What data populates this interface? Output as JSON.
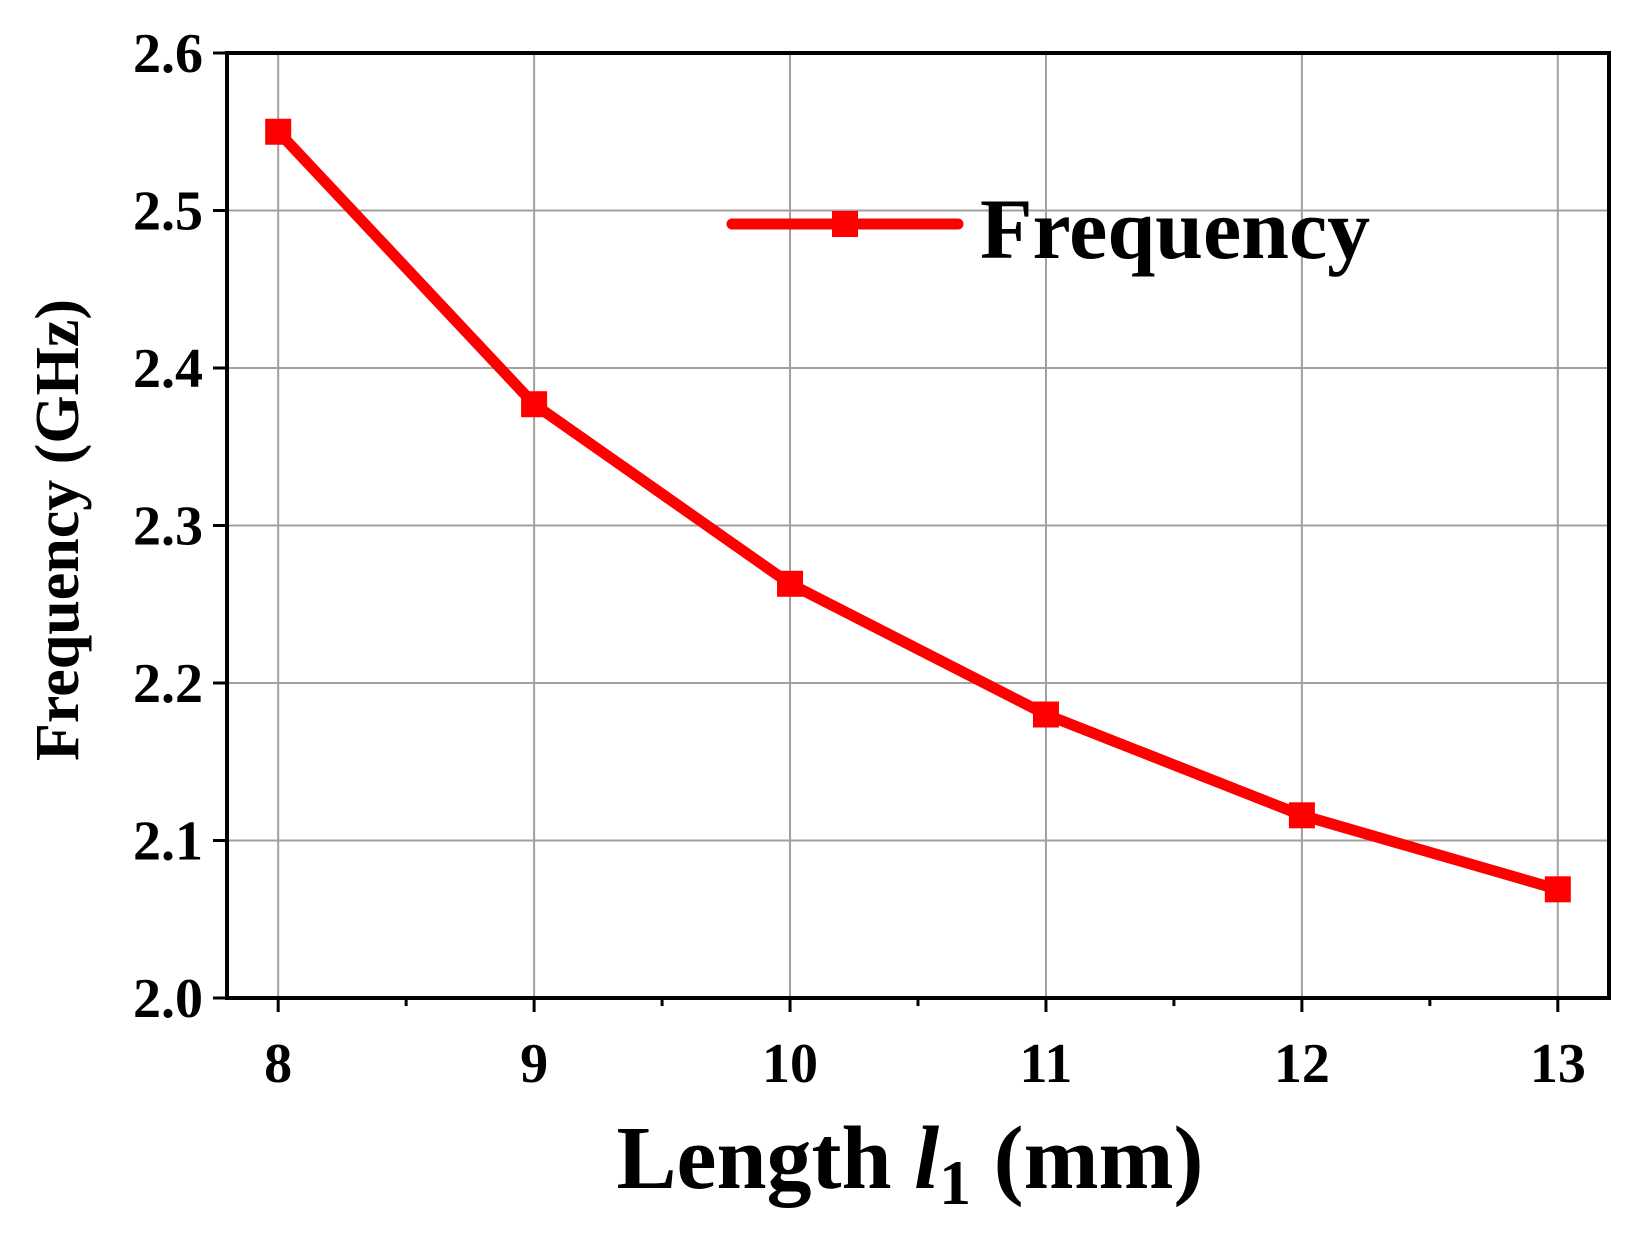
{
  "chart_data": {
    "type": "line",
    "x": [
      8,
      9,
      10,
      11,
      12,
      13
    ],
    "series": [
      {
        "name": "Frequency",
        "values": [
          2.55,
          2.377,
          2.263,
          2.18,
          2.116,
          2.069
        ]
      }
    ],
    "xlabel": {
      "main": "Length ",
      "italic": "l",
      "sub": "1",
      "unit": " (mm)"
    },
    "ylabel": "Frequency (GHz)",
    "xlim": [
      7.8,
      13.2
    ],
    "ylim": [
      2.0,
      2.6
    ],
    "xticks": [
      "8",
      "9",
      "10",
      "11",
      "12",
      "13"
    ],
    "yticks": [
      "2.0",
      "2.1",
      "2.2",
      "2.3",
      "2.4",
      "2.5",
      "2.6"
    ],
    "grid": true,
    "legend_position": "top-right",
    "colors": {
      "series": "#ff0000",
      "grid": "#a0a0a0",
      "axis": "#000000"
    },
    "marker": "square"
  }
}
